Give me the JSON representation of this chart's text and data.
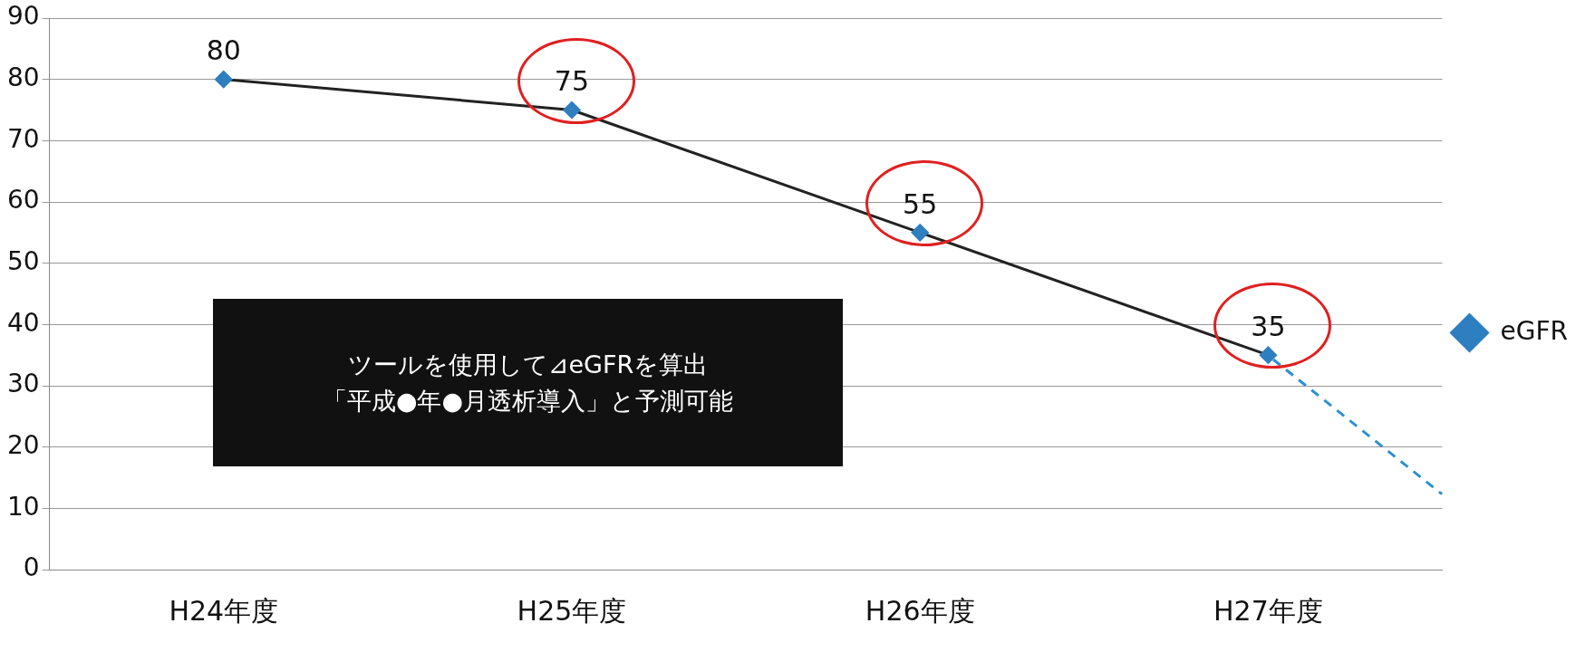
{
  "chart_data": {
    "type": "line",
    "categories": [
      "H24年度",
      "H25年度",
      "H26年度",
      "H27年度"
    ],
    "series": [
      {
        "name": "eGFR",
        "color": "#2e7fc0",
        "values": [
          80,
          75,
          55,
          35
        ],
        "value_labels": [
          "80",
          "75",
          "55",
          "35"
        ]
      }
    ],
    "ylim": [
      0,
      90
    ],
    "yticks": [
      0,
      10,
      20,
      30,
      40,
      50,
      60,
      70,
      80,
      90
    ],
    "grid": "y",
    "legend": "right",
    "marker": "diamond",
    "line_style": "solid",
    "annotations": [
      "ツールを使用して⊿eGFRを算出",
      "「平成●年●月透析導入」と予測可能"
    ]
  }
}
